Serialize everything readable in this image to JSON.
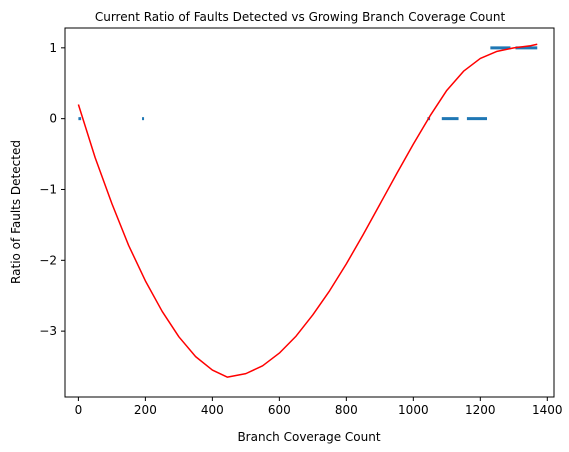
{
  "chart_data": {
    "type": "scatter",
    "title": "Current Ratio of Faults Detected vs Growing Branch Coverage Count",
    "xlabel": "Branch Coverage Count",
    "ylabel": "Ratio of Faults Detected",
    "xlim": [
      -40,
      1420
    ],
    "ylim": [
      -3.93,
      1.28
    ],
    "xticks": [
      0,
      200,
      400,
      600,
      800,
      1000,
      1200,
      1400
    ],
    "xtick_labels": [
      "0",
      "200",
      "400",
      "600",
      "800",
      "1000",
      "1200",
      "1400"
    ],
    "yticks": [
      -3,
      -2,
      -1,
      0,
      1
    ],
    "ytick_labels": [
      "−3",
      "−2",
      "−1",
      "0",
      "1"
    ],
    "grid": false,
    "series": [
      {
        "kind": "scatter",
        "color": "#1f77b4",
        "segments": [
          {
            "x_start": 0,
            "x_end": 8,
            "y": 0
          },
          {
            "x_start": 190,
            "x_end": 196,
            "y": 0
          },
          {
            "x_start": 1042,
            "x_end": 1050,
            "y": 0
          },
          {
            "x_start": 1085,
            "x_end": 1135,
            "y": 0
          },
          {
            "x_start": 1160,
            "x_end": 1220,
            "y": 0
          },
          {
            "x_start": 1230,
            "x_end": 1290,
            "y": 1
          },
          {
            "x_start": 1305,
            "x_end": 1370,
            "y": 1
          }
        ]
      },
      {
        "kind": "line",
        "color": "#ff0000",
        "x": [
          0,
          50,
          100,
          150,
          200,
          250,
          300,
          350,
          400,
          445,
          500,
          550,
          600,
          650,
          700,
          750,
          800,
          850,
          900,
          950,
          1000,
          1050,
          1100,
          1150,
          1200,
          1250,
          1300,
          1350,
          1370
        ],
        "y": [
          0.2,
          -0.55,
          -1.2,
          -1.79,
          -2.29,
          -2.72,
          -3.08,
          -3.36,
          -3.55,
          -3.65,
          -3.6,
          -3.49,
          -3.31,
          -3.07,
          -2.77,
          -2.43,
          -2.05,
          -1.64,
          -1.21,
          -0.78,
          -0.36,
          0.04,
          0.4,
          0.67,
          0.85,
          0.95,
          1.0,
          1.03,
          1.05
        ]
      }
    ]
  }
}
